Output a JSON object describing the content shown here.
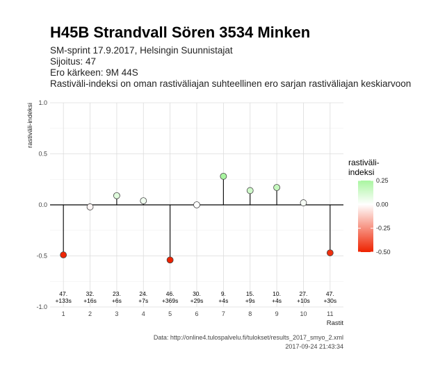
{
  "header": {
    "title": "H45B Strandvall Sören 3534 Minken",
    "subtitle_lines": [
      "SM-sprint 17.9.2017, Helsingin Suunnistajat",
      "Sijoitus: 47",
      "Ero kärkeen: 9M 44S",
      "Rastiväli-indeksi on oman rastiväliajan suhteellinen ero sarjan rastiväliajan keskiarvoon"
    ]
  },
  "chart_data": {
    "type": "scatter",
    "xlabel": "Rastit",
    "ylabel": "rastiväli-indeksi",
    "xlim": [
      0.5,
      11.5
    ],
    "ylim": [
      -1.0,
      1.0
    ],
    "x_ticks": [
      "1",
      "2",
      "3",
      "4",
      "5",
      "6",
      "7",
      "8",
      "9",
      "10",
      "11"
    ],
    "y_ticks": [
      -1.0,
      -0.5,
      0.0,
      0.5,
      1.0
    ],
    "y_tick_labels": [
      "-1.0",
      "-0.5",
      "0.0",
      "0.5",
      "1.0"
    ],
    "grid": true,
    "points": [
      {
        "x": 1,
        "y": -0.49,
        "label_rank": "47.",
        "label_diff": "+133s"
      },
      {
        "x": 2,
        "y": -0.02,
        "label_rank": "32.",
        "label_diff": "+16s"
      },
      {
        "x": 3,
        "y": 0.09,
        "label_rank": "23.",
        "label_diff": "+6s"
      },
      {
        "x": 4,
        "y": 0.04,
        "label_rank": "24.",
        "label_diff": "+7s"
      },
      {
        "x": 5,
        "y": -0.54,
        "label_rank": "46.",
        "label_diff": "+369s"
      },
      {
        "x": 6,
        "y": 0.0,
        "label_rank": "30.",
        "label_diff": "+29s"
      },
      {
        "x": 7,
        "y": 0.28,
        "label_rank": "9.",
        "label_diff": "+4s"
      },
      {
        "x": 8,
        "y": 0.14,
        "label_rank": "15.",
        "label_diff": "+9s"
      },
      {
        "x": 9,
        "y": 0.17,
        "label_rank": "10.",
        "label_diff": "+4s"
      },
      {
        "x": 10,
        "y": 0.02,
        "label_rank": "27.",
        "label_diff": "+10s"
      },
      {
        "x": 11,
        "y": -0.47,
        "label_rank": "47.",
        "label_diff": "+30s"
      }
    ],
    "legend": {
      "title_lines": [
        "rastiväli-",
        "indeksi"
      ],
      "placement": "right",
      "range": [
        -0.5,
        0.25
      ],
      "ticks": [
        0.25,
        0.0,
        -0.25,
        -0.5
      ],
      "tick_labels": [
        "0.25",
        "0.00",
        "-0.25",
        "-0.50"
      ],
      "color_high": "#a9f5a0",
      "color_mid": "#ffffff",
      "color_low": "#ee2200"
    },
    "caption_lines": [
      "Data: http://online4.tulospalvelu.fi/tulokset/results_2017_smyo_2.xml",
      "2017-09-24 21:43:34"
    ]
  }
}
